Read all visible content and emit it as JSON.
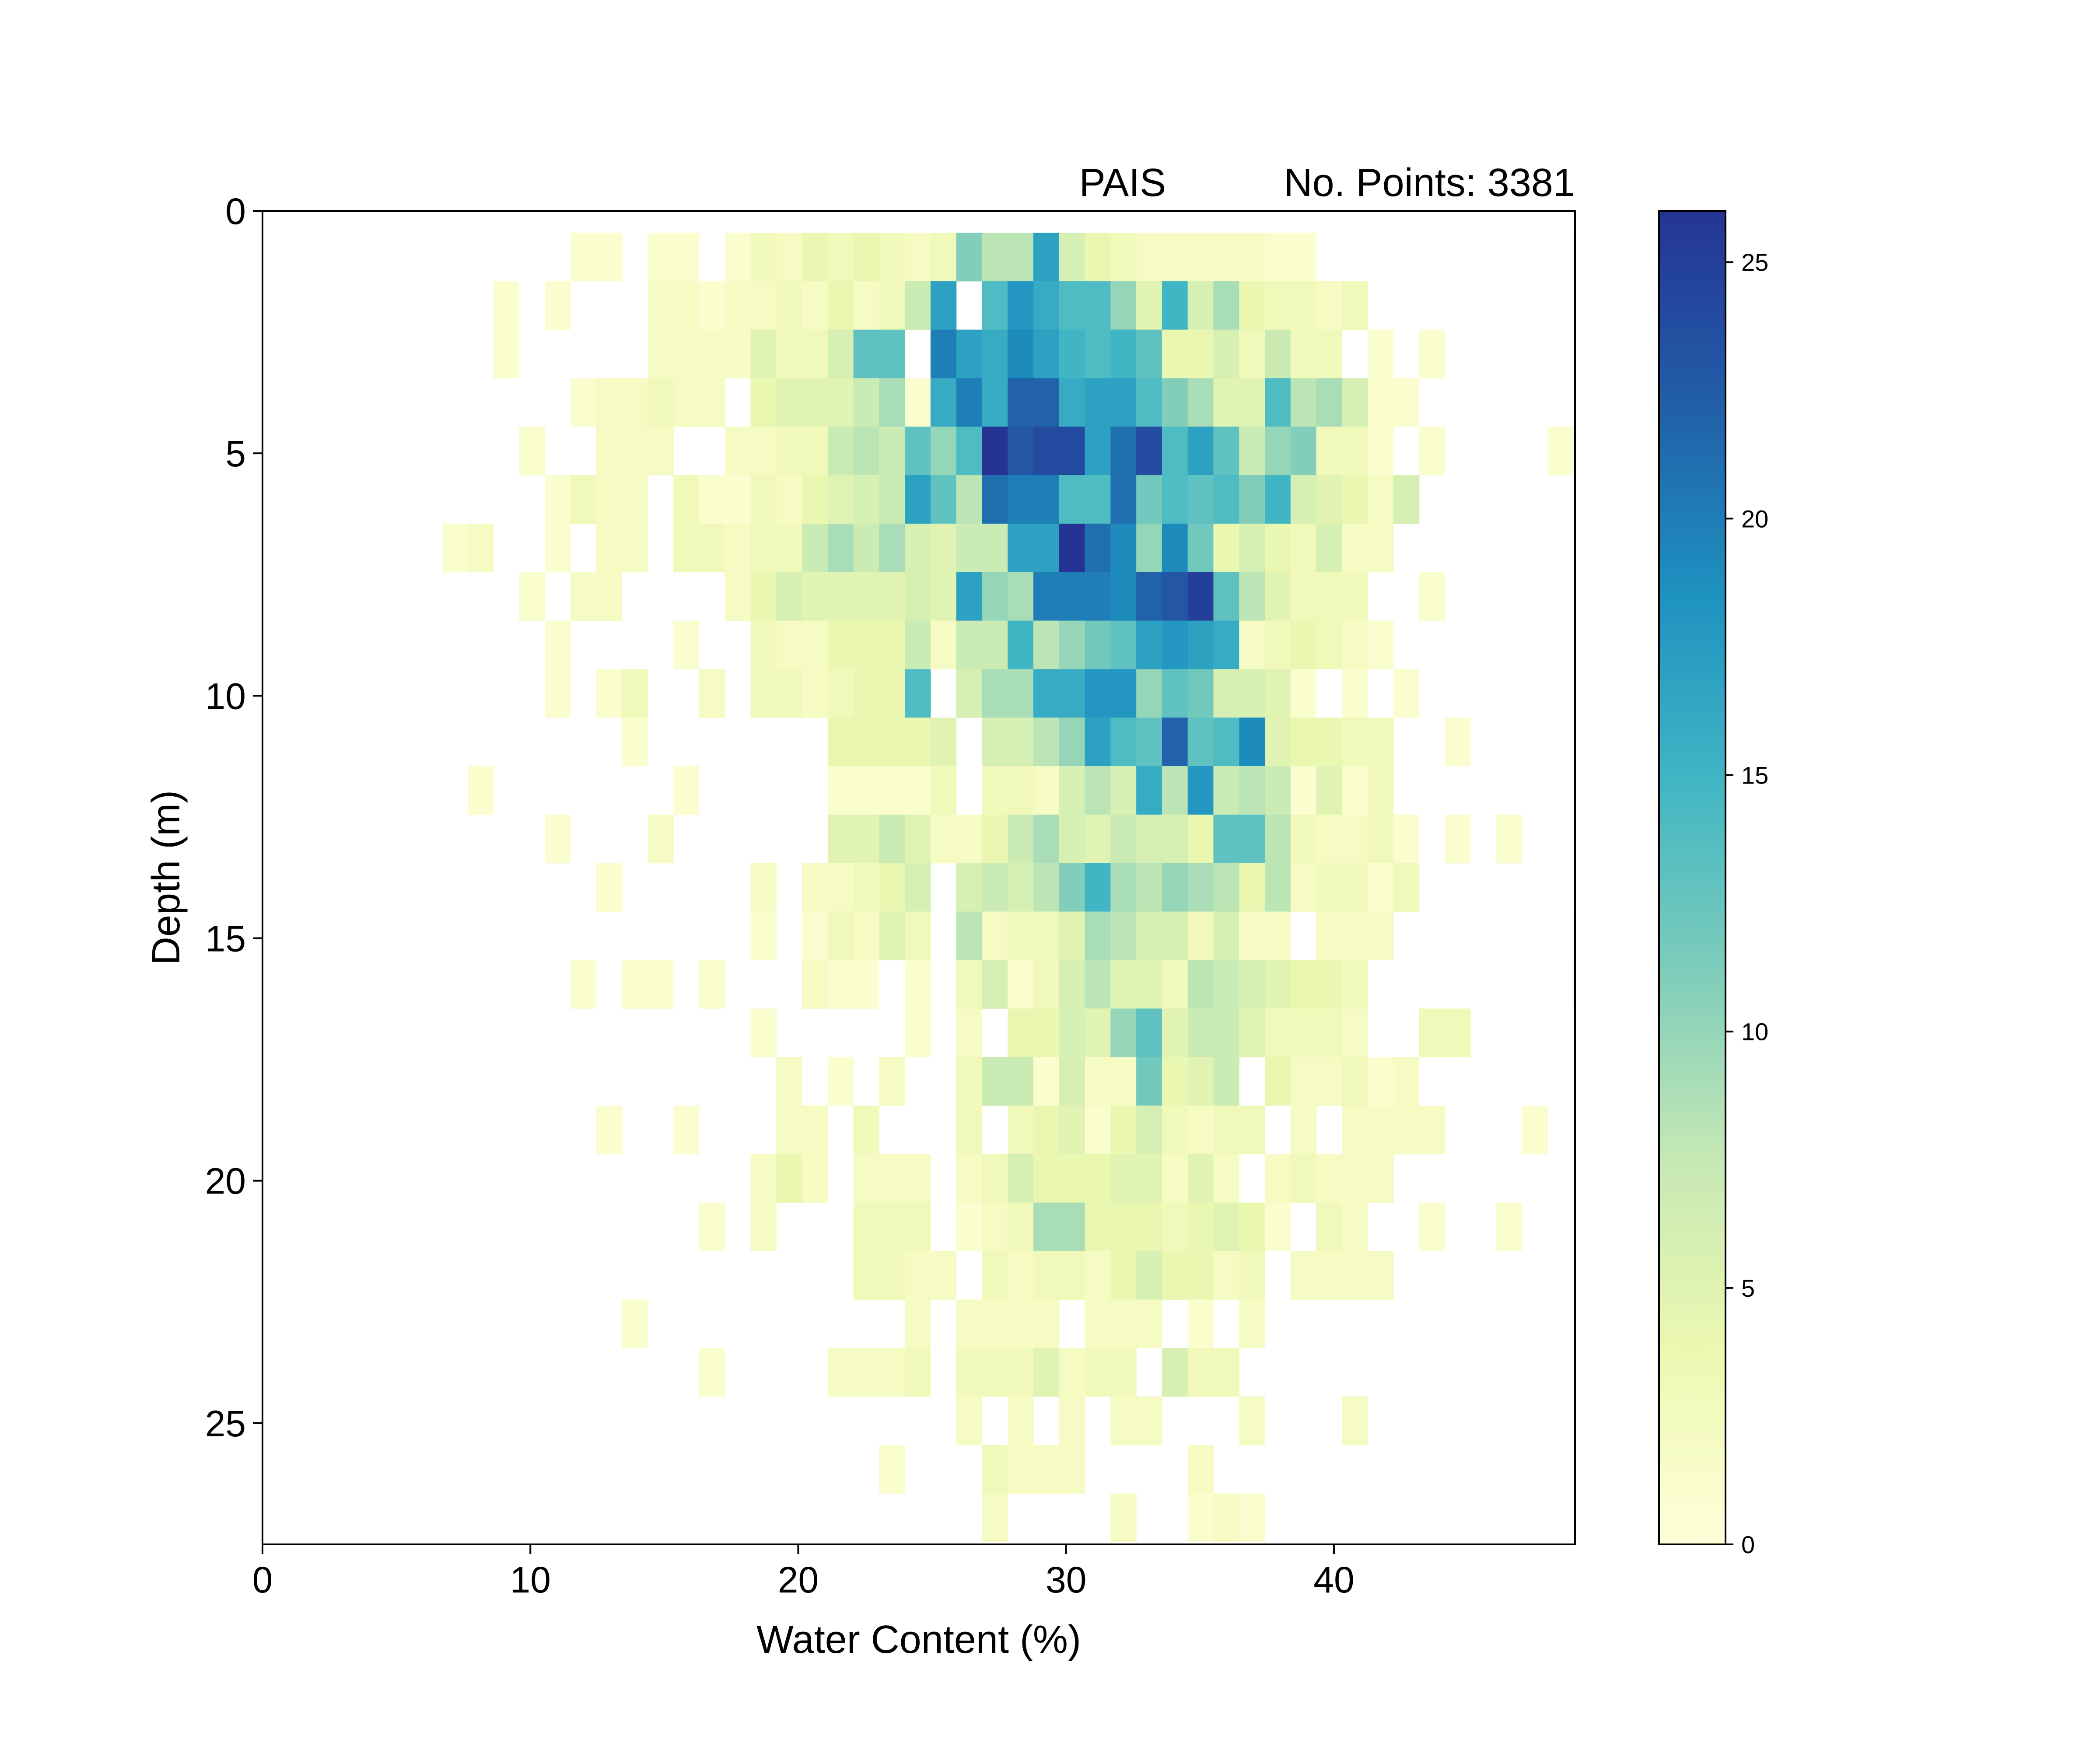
{
  "chart_data": {
    "type": "heatmap",
    "title_left": "PAIS",
    "title_right": "No. Points: 3381",
    "xlabel": "Water Content (%)",
    "ylabel": "Depth (m)",
    "xlim": [
      0,
      49
    ],
    "ylim": [
      27.5,
      0
    ],
    "x_ticks": [
      "0",
      "10",
      "20",
      "30",
      "40"
    ],
    "y_ticks": [
      "0",
      "5",
      "10",
      "15",
      "20",
      "25"
    ],
    "x_bin_width": 0.96,
    "y_bin_height": 1.0,
    "x_bin_start": 6.7,
    "y_bin_start": 0.45,
    "colorbar": {
      "min": 0,
      "max": 26,
      "ticks": [
        "0",
        "5",
        "10",
        "15",
        "20",
        "25"
      ],
      "colormap": "YlGnBu",
      "stops": [
        "#ffffd9",
        "#edf8b1",
        "#c7e9b4",
        "#7fcdbb",
        "#41b6c4",
        "#1d91c0",
        "#225ea8",
        "#253494"
      ]
    },
    "bins_x_start_index": 0,
    "counts": [
      [
        0,
        0,
        0,
        0,
        0,
        1,
        1,
        0,
        1,
        1,
        0,
        1,
        3,
        2,
        4,
        3,
        4,
        3,
        2,
        3,
        11,
        8,
        8,
        17,
        6,
        4,
        3,
        2,
        2,
        2,
        2,
        2,
        1,
        1,
        0,
        0,
        0,
        0,
        0,
        0,
        0,
        0,
        0,
        0,
        1
      ],
      [
        0,
        0,
        1,
        0,
        1,
        0,
        0,
        0,
        2,
        2,
        1,
        2,
        2,
        3,
        2,
        4,
        2,
        3,
        7,
        17,
        0,
        14,
        18,
        16,
        14,
        14,
        10,
        5,
        15,
        6,
        9,
        4,
        3,
        3,
        2,
        3,
        0,
        0,
        0,
        0,
        0,
        0,
        0,
        0,
        0
      ],
      [
        0,
        0,
        1,
        0,
        0,
        0,
        0,
        0,
        2,
        2,
        2,
        2,
        5,
        3,
        3,
        6,
        13,
        13,
        0,
        20,
        17,
        16,
        19,
        17,
        15,
        14,
        15,
        13,
        4,
        4,
        6,
        3,
        7,
        3,
        3,
        0,
        1,
        0,
        1,
        0,
        0,
        0,
        0,
        0,
        0
      ],
      [
        0,
        0,
        0,
        0,
        0,
        1,
        2,
        2,
        3,
        2,
        2,
        0,
        4,
        5,
        5,
        5,
        7,
        9,
        1,
        16,
        20,
        16,
        22,
        22,
        16,
        17,
        17,
        14,
        11,
        9,
        5,
        5,
        14,
        8,
        9,
        6,
        1,
        1,
        0,
        0,
        0,
        0,
        0,
        0,
        0
      ],
      [
        0,
        0,
        0,
        1,
        0,
        0,
        2,
        2,
        2,
        0,
        0,
        2,
        2,
        3,
        3,
        7,
        8,
        7,
        13,
        10,
        14,
        26,
        23,
        24,
        24,
        17,
        21,
        24,
        14,
        17,
        13,
        7,
        10,
        11,
        3,
        3,
        1,
        0,
        1,
        0,
        0,
        0,
        0,
        1
      ],
      [
        0,
        0,
        0,
        0,
        1,
        3,
        2,
        2,
        0,
        3,
        1,
        1,
        3,
        2,
        4,
        5,
        6,
        7,
        17,
        13,
        8,
        21,
        20,
        20,
        14,
        14,
        21,
        12,
        14,
        13,
        14,
        11,
        15,
        6,
        5,
        4,
        2,
        6,
        0,
        0,
        0,
        0,
        0,
        0,
        0
      ],
      [
        1,
        2,
        0,
        0,
        1,
        0,
        2,
        2,
        0,
        3,
        3,
        2,
        3,
        3,
        7,
        9,
        7,
        9,
        6,
        5,
        7,
        7,
        17,
        17,
        26,
        21,
        19,
        10,
        19,
        12,
        4,
        6,
        4,
        3,
        6,
        2,
        2,
        0,
        0,
        0,
        0,
        0,
        0,
        0,
        0
      ],
      [
        0,
        0,
        0,
        1,
        0,
        2,
        2,
        0,
        0,
        0,
        0,
        2,
        4,
        6,
        5,
        5,
        5,
        5,
        6,
        5,
        17,
        10,
        9,
        20,
        20,
        20,
        19,
        22,
        23,
        25,
        13,
        8,
        5,
        3,
        3,
        3,
        0,
        0,
        1,
        0,
        0,
        0,
        0,
        0,
        0
      ],
      [
        0,
        0,
        0,
        0,
        1,
        0,
        0,
        0,
        0,
        1,
        0,
        0,
        3,
        2,
        2,
        4,
        4,
        4,
        7,
        2,
        7,
        7,
        15,
        8,
        10,
        12,
        13,
        17,
        18,
        17,
        16,
        2,
        3,
        4,
        3,
        2,
        1,
        0,
        0,
        0,
        0,
        0,
        0,
        0,
        0
      ],
      [
        0,
        0,
        0,
        0,
        1,
        0,
        1,
        3,
        0,
        0,
        2,
        0,
        3,
        3,
        2,
        3,
        4,
        4,
        14,
        0,
        6,
        9,
        9,
        16,
        16,
        18,
        18,
        10,
        13,
        12,
        6,
        6,
        5,
        1,
        0,
        1,
        0,
        1,
        0,
        0,
        0,
        0,
        0,
        0,
        0
      ],
      [
        0,
        0,
        0,
        0,
        0,
        0,
        0,
        1,
        0,
        0,
        0,
        0,
        0,
        0,
        0,
        4,
        4,
        4,
        4,
        5,
        0,
        6,
        6,
        8,
        10,
        17,
        14,
        13,
        22,
        13,
        14,
        19,
        5,
        4,
        4,
        3,
        3,
        0,
        0,
        1,
        0,
        0,
        0,
        0,
        0
      ],
      [
        0,
        1,
        0,
        0,
        0,
        0,
        0,
        0,
        0,
        1,
        0,
        0,
        0,
        0,
        0,
        1,
        1,
        1,
        1,
        3,
        0,
        3,
        3,
        2,
        6,
        8,
        6,
        16,
        8,
        18,
        7,
        8,
        7,
        1,
        5,
        1,
        3,
        0,
        0,
        0,
        0,
        0,
        0,
        0,
        0
      ],
      [
        0,
        0,
        0,
        0,
        1,
        0,
        0,
        0,
        2,
        0,
        0,
        0,
        0,
        0,
        0,
        5,
        5,
        7,
        5,
        2,
        2,
        4,
        7,
        9,
        6,
        5,
        7,
        6,
        6,
        4,
        13,
        13,
        8,
        3,
        2,
        2,
        3,
        1,
        0,
        1,
        0,
        1,
        0,
        0,
        0
      ],
      [
        0,
        0,
        0,
        0,
        0,
        0,
        1,
        0,
        0,
        0,
        0,
        0,
        2,
        0,
        2,
        2,
        3,
        4,
        6,
        0,
        6,
        7,
        6,
        8,
        11,
        15,
        9,
        8,
        10,
        9,
        8,
        4,
        8,
        2,
        3,
        3,
        1,
        3,
        0,
        0,
        0,
        0,
        0,
        0,
        0
      ],
      [
        0,
        0,
        0,
        0,
        0,
        0,
        0,
        0,
        0,
        0,
        0,
        0,
        1,
        0,
        1,
        3,
        2,
        5,
        3,
        0,
        8,
        2,
        3,
        3,
        5,
        9,
        8,
        6,
        6,
        3,
        6,
        2,
        2,
        0,
        2,
        2,
        2,
        0,
        0,
        0,
        0,
        0,
        0,
        0,
        1
      ],
      [
        0,
        0,
        0,
        0,
        0,
        1,
        0,
        1,
        1,
        0,
        1,
        0,
        0,
        0,
        2,
        1,
        1,
        0,
        1,
        0,
        3,
        6,
        1,
        3,
        6,
        8,
        5,
        5,
        3,
        8,
        7,
        6,
        5,
        4,
        4,
        3,
        0,
        0,
        0,
        0,
        0,
        0,
        0,
        0,
        2
      ],
      [
        0,
        0,
        0,
        0,
        0,
        0,
        0,
        0,
        0,
        0,
        0,
        0,
        1,
        0,
        0,
        0,
        0,
        0,
        1,
        0,
        2,
        0,
        4,
        4,
        6,
        5,
        10,
        13,
        5,
        7,
        7,
        5,
        3,
        3,
        3,
        2,
        0,
        0,
        3,
        3,
        0,
        0,
        0,
        0,
        0
      ],
      [
        0,
        0,
        0,
        0,
        0,
        0,
        0,
        0,
        0,
        0,
        0,
        0,
        0,
        2,
        0,
        1,
        0,
        2,
        0,
        0,
        3,
        7,
        7,
        1,
        6,
        2,
        2,
        12,
        4,
        5,
        7,
        0,
        4,
        2,
        2,
        3,
        1,
        2,
        0,
        0,
        0,
        0,
        0,
        0,
        0
      ],
      [
        0,
        0,
        0,
        0,
        0,
        0,
        1,
        0,
        0,
        1,
        0,
        0,
        0,
        2,
        2,
        0,
        3,
        0,
        0,
        0,
        3,
        0,
        3,
        4,
        5,
        1,
        4,
        6,
        3,
        2,
        3,
        3,
        0,
        2,
        0,
        2,
        2,
        2,
        2,
        0,
        0,
        0,
        1,
        0
      ],
      [
        0,
        0,
        0,
        0,
        0,
        0,
        0,
        0,
        0,
        0,
        0,
        0,
        2,
        4,
        2,
        0,
        2,
        2,
        2,
        0,
        2,
        3,
        6,
        4,
        4,
        4,
        5,
        5,
        2,
        5,
        2,
        0,
        2,
        3,
        2,
        2,
        2,
        0,
        0,
        0,
        0,
        0,
        0,
        0
      ],
      [
        0,
        0,
        0,
        0,
        0,
        0,
        0,
        0,
        0,
        0,
        1,
        0,
        2,
        0,
        0,
        0,
        3,
        3,
        3,
        0,
        1,
        2,
        3,
        9,
        9,
        4,
        4,
        4,
        3,
        4,
        5,
        4,
        1,
        0,
        3,
        2,
        0,
        0,
        1,
        0,
        0,
        1,
        0,
        0
      ],
      [
        0,
        0,
        0,
        0,
        0,
        0,
        0,
        0,
        0,
        0,
        0,
        0,
        0,
        0,
        0,
        0,
        3,
        3,
        2,
        2,
        0,
        3,
        2,
        3,
        3,
        2,
        4,
        6,
        4,
        4,
        2,
        3,
        0,
        2,
        2,
        2,
        2,
        0,
        0,
        0,
        0,
        0,
        0,
        0
      ],
      [
        0,
        0,
        0,
        0,
        0,
        0,
        0,
        1,
        0,
        0,
        0,
        0,
        0,
        0,
        0,
        0,
        0,
        0,
        2,
        0,
        2,
        2,
        2,
        2,
        0,
        2,
        2,
        2,
        0,
        1,
        0,
        2,
        0,
        0,
        0,
        0,
        0,
        0,
        0,
        0,
        0,
        0,
        0,
        0
      ],
      [
        0,
        0,
        0,
        0,
        0,
        0,
        0,
        0,
        0,
        0,
        1,
        0,
        0,
        0,
        0,
        2,
        2,
        2,
        3,
        0,
        3,
        3,
        3,
        5,
        2,
        3,
        3,
        0,
        6,
        3,
        3,
        0,
        0,
        0,
        0,
        0,
        0,
        0,
        0,
        0,
        0,
        0,
        0,
        0
      ],
      [
        0,
        0,
        0,
        0,
        0,
        0,
        0,
        0,
        0,
        0,
        0,
        0,
        0,
        0,
        0,
        0,
        0,
        0,
        0,
        0,
        2,
        0,
        2,
        0,
        2,
        0,
        2,
        2,
        0,
        0,
        0,
        2,
        0,
        0,
        0,
        2,
        0,
        0,
        0,
        0,
        0,
        0,
        0,
        0
      ],
      [
        0,
        0,
        0,
        0,
        0,
        0,
        0,
        0,
        0,
        0,
        0,
        0,
        0,
        0,
        0,
        0,
        0,
        1,
        0,
        0,
        0,
        3,
        2,
        2,
        2,
        0,
        0,
        0,
        0,
        2,
        0,
        0,
        0,
        0,
        0,
        0,
        0,
        0,
        0,
        0,
        0,
        0,
        0,
        0
      ],
      [
        0,
        0,
        0,
        0,
        0,
        0,
        0,
        0,
        0,
        0,
        0,
        0,
        0,
        0,
        0,
        0,
        0,
        0,
        0,
        0,
        0,
        2,
        0,
        0,
        0,
        0,
        2,
        0,
        0,
        1,
        2,
        1,
        0,
        0,
        0,
        0,
        0,
        0,
        0,
        0,
        0,
        0,
        0,
        0
      ]
    ],
    "grid": false
  }
}
